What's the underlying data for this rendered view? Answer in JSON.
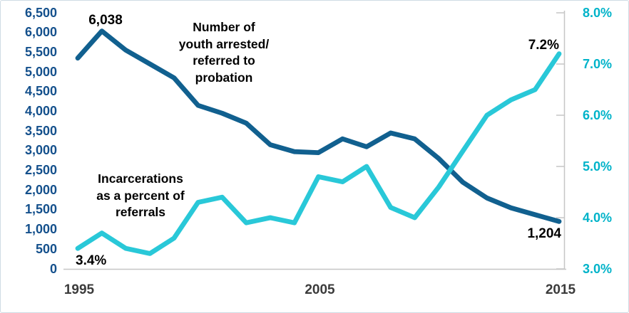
{
  "chart_data": {
    "type": "line",
    "x": [
      1995,
      1996,
      1997,
      1998,
      1999,
      2000,
      2001,
      2002,
      2003,
      2004,
      2005,
      2006,
      2007,
      2008,
      2009,
      2010,
      2011,
      2012,
      2013,
      2014,
      2015
    ],
    "x_axis": {
      "tick_labels": [
        "1995",
        "2005",
        "2015"
      ],
      "tick_indices": [
        0,
        10,
        20
      ],
      "label_color": "#3b3b3b"
    },
    "series": [
      {
        "name": "Number of youth arrested/referred to probation",
        "axis": "left",
        "color": "#11608f",
        "values": [
          5350,
          6038,
          5550,
          5200,
          4850,
          4150,
          3950,
          3700,
          3150,
          2975,
          2950,
          3300,
          3100,
          3450,
          3300,
          2800,
          2200,
          1800,
          1550,
          1375,
          1204
        ]
      },
      {
        "name": "Incarcerations as a percent of referrals",
        "axis": "right",
        "color": "#29c8d8",
        "values": [
          3.4,
          3.7,
          3.4,
          3.3,
          3.6,
          4.3,
          4.4,
          3.9,
          4.0,
          3.9,
          4.8,
          4.7,
          5.0,
          4.2,
          4.0,
          4.6,
          5.3,
          6.0,
          6.3,
          6.5,
          7.2
        ]
      }
    ],
    "left_axis": {
      "min": 0,
      "max": 6500,
      "step": 500,
      "labels": [
        "6,500",
        "6,000",
        "5,500",
        "5,000",
        "4,500",
        "4,000",
        "3,500",
        "3,000",
        "2,500",
        "2,000",
        "1,500",
        "1,000",
        "500",
        "0"
      ],
      "color": "#14508c"
    },
    "right_axis": {
      "min": 3.0,
      "max": 8.0,
      "step": 1.0,
      "labels": [
        "8.0%",
        "7.0%",
        "6.0%",
        "5.0%",
        "4.0%",
        "3.0%"
      ],
      "color": "#00b3c9"
    },
    "grid": "off",
    "axis_line_color": "#c6c6c6",
    "legend_position": "annotations-in-plot"
  },
  "annotations": {
    "series1_peak_value": "6,038",
    "series1_end_value": "1,204",
    "series2_start_value": "3.4%",
    "series2_end_value": "7.2%",
    "series1_title": [
      "Number of",
      "youth arrested/",
      "referred to",
      "probation"
    ],
    "series2_title": [
      "Incarcerations",
      "as a percent of",
      "referrals"
    ]
  }
}
